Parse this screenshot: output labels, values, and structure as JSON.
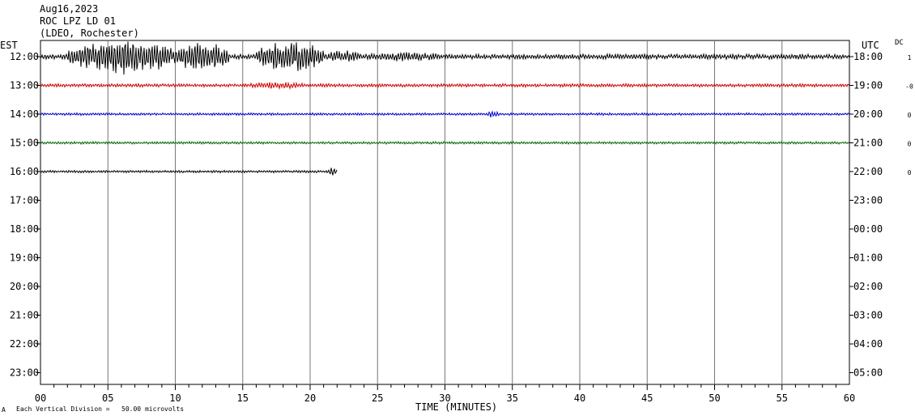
{
  "header": {
    "date": "Aug16,2023",
    "station": "ROC LPZ LD 01",
    "network": "(LDEO, Rochester)"
  },
  "left_zone": "EST",
  "right_zone": "UTC",
  "dc_label": "DC",
  "footer": {
    "x_title": "TIME (MINUTES)",
    "scale_note": "Each Vertical Division =   50.00 microvolts",
    "corner_mark": "A"
  },
  "chart_data": {
    "type": "line",
    "subtype": "helicorder",
    "x_range": [
      0,
      60
    ],
    "x_ticks": [
      "00",
      "05",
      "10",
      "15",
      "20",
      "25",
      "30",
      "35",
      "40",
      "45",
      "50",
      "55",
      "60"
    ],
    "rows_left": [
      "12:00",
      "13:00",
      "14:00",
      "15:00",
      "16:00",
      "17:00",
      "18:00",
      "19:00",
      "20:00",
      "21:00",
      "22:00",
      "23:00"
    ],
    "rows_right": [
      "18:00",
      "19:00",
      "20:00",
      "21:00",
      "22:00",
      "23:00",
      "00:00",
      "01:00",
      "02:00",
      "03:00",
      "04:00",
      "05:00"
    ],
    "dc_offsets": [
      "1",
      "-0",
      "0",
      "0",
      "0"
    ],
    "grid": true,
    "traces": [
      {
        "row": "12:00",
        "color": "#000000",
        "end_minute": 60,
        "base_amp": 3,
        "bursts": [
          {
            "start": 2,
            "end": 10,
            "amp": 22
          },
          {
            "start": 10,
            "end": 14,
            "amp": 18
          },
          {
            "start": 16,
            "end": 21,
            "amp": 20
          },
          {
            "start": 21,
            "end": 24,
            "amp": 8
          },
          {
            "start": 24,
            "end": 30,
            "amp": 6
          }
        ]
      },
      {
        "row": "13:00",
        "color": "#cc0000",
        "end_minute": 60,
        "base_amp": 2,
        "bursts": [
          {
            "start": 15,
            "end": 20,
            "amp": 4
          }
        ]
      },
      {
        "row": "14:00",
        "color": "#0000cc",
        "end_minute": 60,
        "base_amp": 1.5,
        "bursts": [
          {
            "start": 33,
            "end": 34,
            "amp": 4
          }
        ]
      },
      {
        "row": "15:00",
        "color": "#006600",
        "end_minute": 60,
        "base_amp": 1.5,
        "bursts": []
      },
      {
        "row": "16:00",
        "color": "#000000",
        "end_minute": 22,
        "base_amp": 1.5,
        "bursts": [
          {
            "start": 21.3,
            "end": 22,
            "amp": 5
          }
        ]
      }
    ]
  }
}
